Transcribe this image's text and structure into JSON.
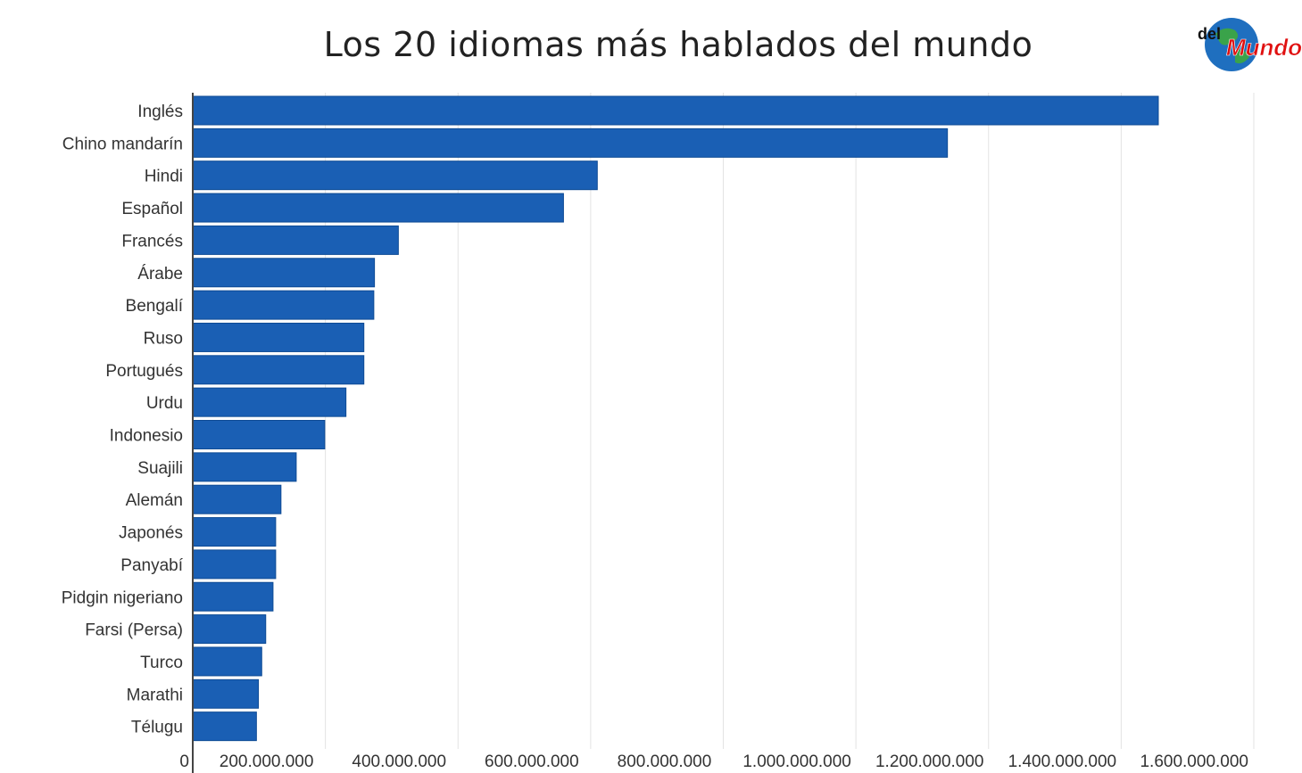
{
  "chart_data": {
    "type": "bar",
    "orientation": "horizontal",
    "title": "Los 20 idiomas más hablados del mundo",
    "categories": [
      "Inglés",
      "Chino mandarín",
      "Hindi",
      "Español",
      "Francés",
      "Árabe",
      "Bengalí",
      "Ruso",
      "Portugués",
      "Urdu",
      "Indonesio",
      "Suajili",
      "Alemán",
      "Japonés",
      "Panyabí",
      "Pidgin nigeriano",
      "Farsi (Persa)",
      "Turco",
      "Marathi",
      "Télugu"
    ],
    "values": [
      1456000000,
      1138000000,
      610000000,
      559000000,
      310000000,
      274000000,
      273000000,
      258000000,
      258000000,
      231000000,
      199000000,
      156000000,
      133000000,
      125000000,
      125000000,
      121000000,
      110000000,
      104000000,
      99000000,
      96000000
    ],
    "xlim": [
      0,
      1600000000
    ],
    "xticks": [
      "0",
      "200.000.000",
      "400.000.000",
      "600.000.000",
      "800.000.000",
      "1.000.000.000",
      "1.200.000.000",
      "1.400.000.000",
      "1.600.000.000"
    ],
    "grid": true,
    "bar_color": "#1a5fb4"
  },
  "logo": {
    "text_small": "del",
    "text_big": "Mundo"
  }
}
